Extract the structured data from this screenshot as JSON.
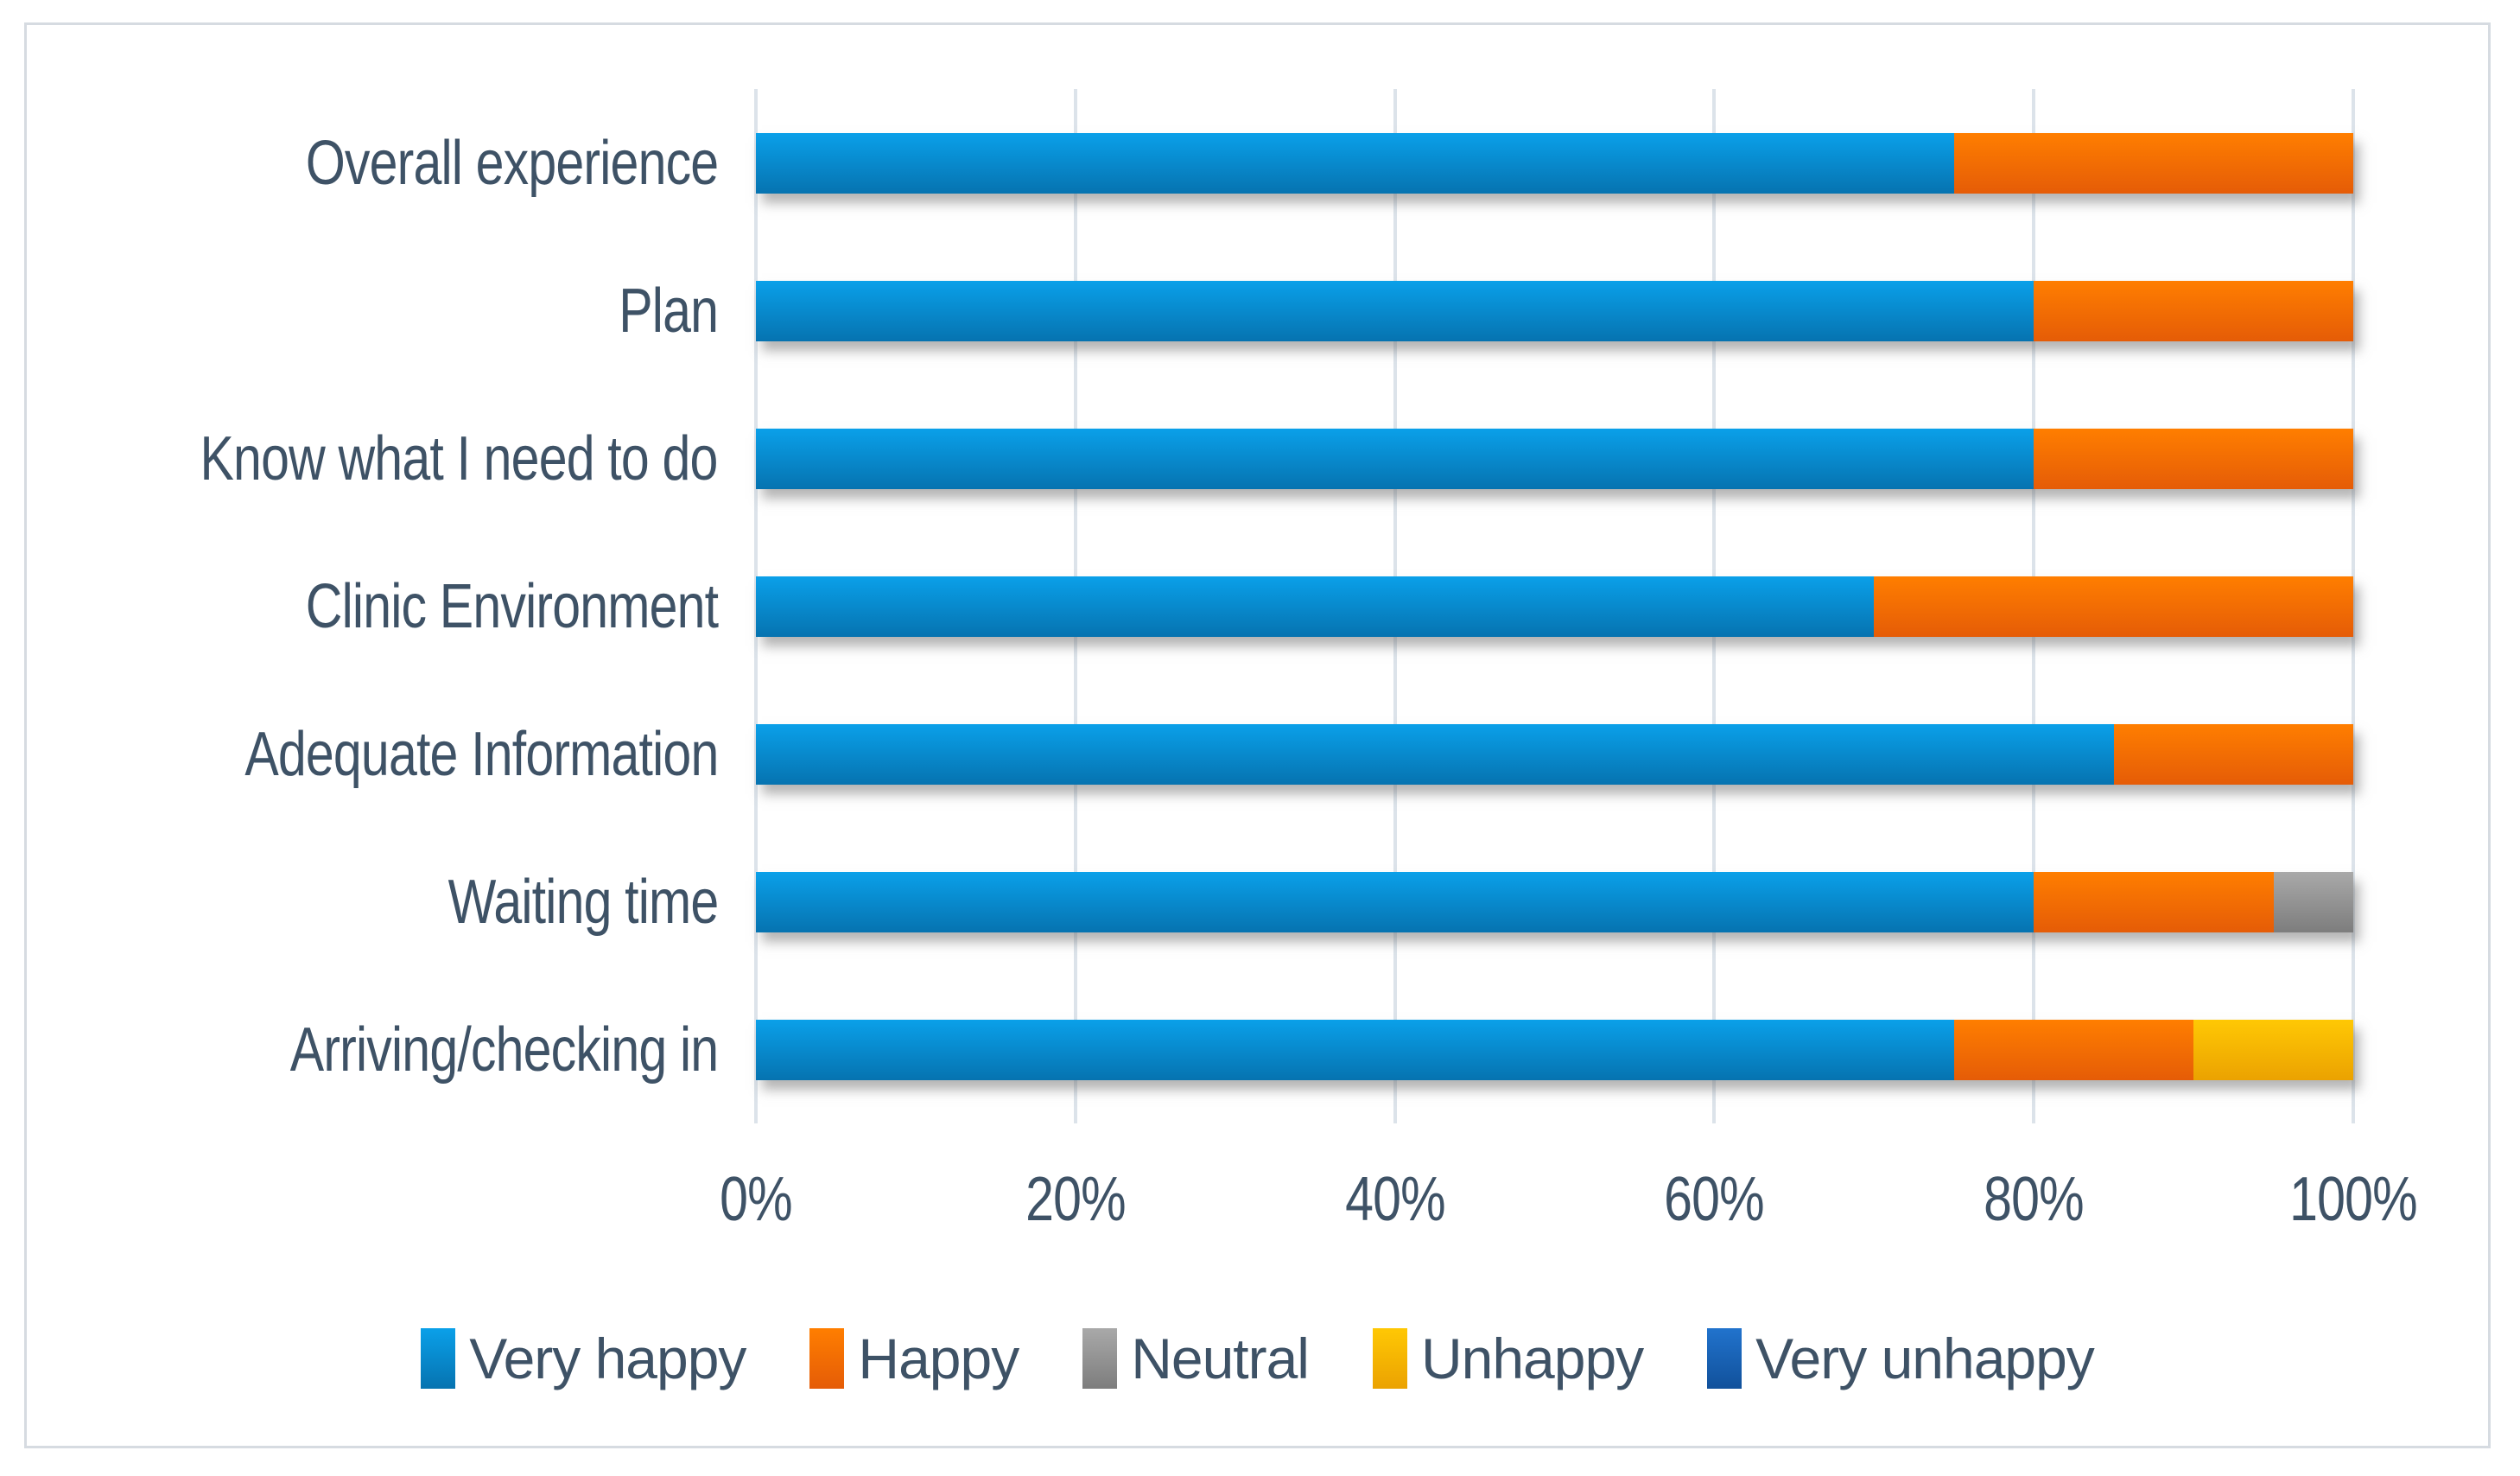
{
  "chart_data": {
    "type": "bar",
    "orientation": "horizontal",
    "stacked": true,
    "stacked_100_percent": true,
    "title": "",
    "xlabel": "",
    "ylabel": "",
    "categories": [
      "Overall experience",
      "Plan",
      "Know what I need to do",
      "Clinic Environment",
      "Adequate Information",
      "Waiting time",
      "Arriving/checking in"
    ],
    "series": [
      {
        "name": "Very happy",
        "color_top": "#0aa0e9",
        "color_bottom": "#0673b0",
        "values": [
          75,
          80,
          80,
          70,
          85,
          80,
          75
        ]
      },
      {
        "name": "Happy",
        "color_top": "#ff7e00",
        "color_bottom": "#e55c07",
        "values": [
          25,
          20,
          20,
          30,
          15,
          15,
          15
        ]
      },
      {
        "name": "Neutral",
        "color_top": "#a9a9a9",
        "color_bottom": "#7d7d7d",
        "values": [
          0,
          0,
          0,
          0,
          0,
          5,
          0
        ]
      },
      {
        "name": "Unhappy",
        "color_top": "#ffc804",
        "color_bottom": "#eba201",
        "values": [
          0,
          0,
          0,
          0,
          0,
          0,
          10
        ]
      },
      {
        "name": "Very unhappy",
        "color_top": "#2173cd",
        "color_bottom": "#11519b",
        "values": [
          0,
          0,
          0,
          0,
          0,
          0,
          0
        ]
      }
    ],
    "x_axis": {
      "tick_labels": [
        "0%",
        "20%",
        "40%",
        "60%",
        "80%",
        "100%"
      ],
      "min": 0,
      "max": 100
    },
    "grid": true,
    "legend_position": "bottom",
    "text_color": "#3e5266",
    "gridline_color": "#dce3ea",
    "border_color": "#d6dbe1",
    "background_color": "#ffffff"
  }
}
